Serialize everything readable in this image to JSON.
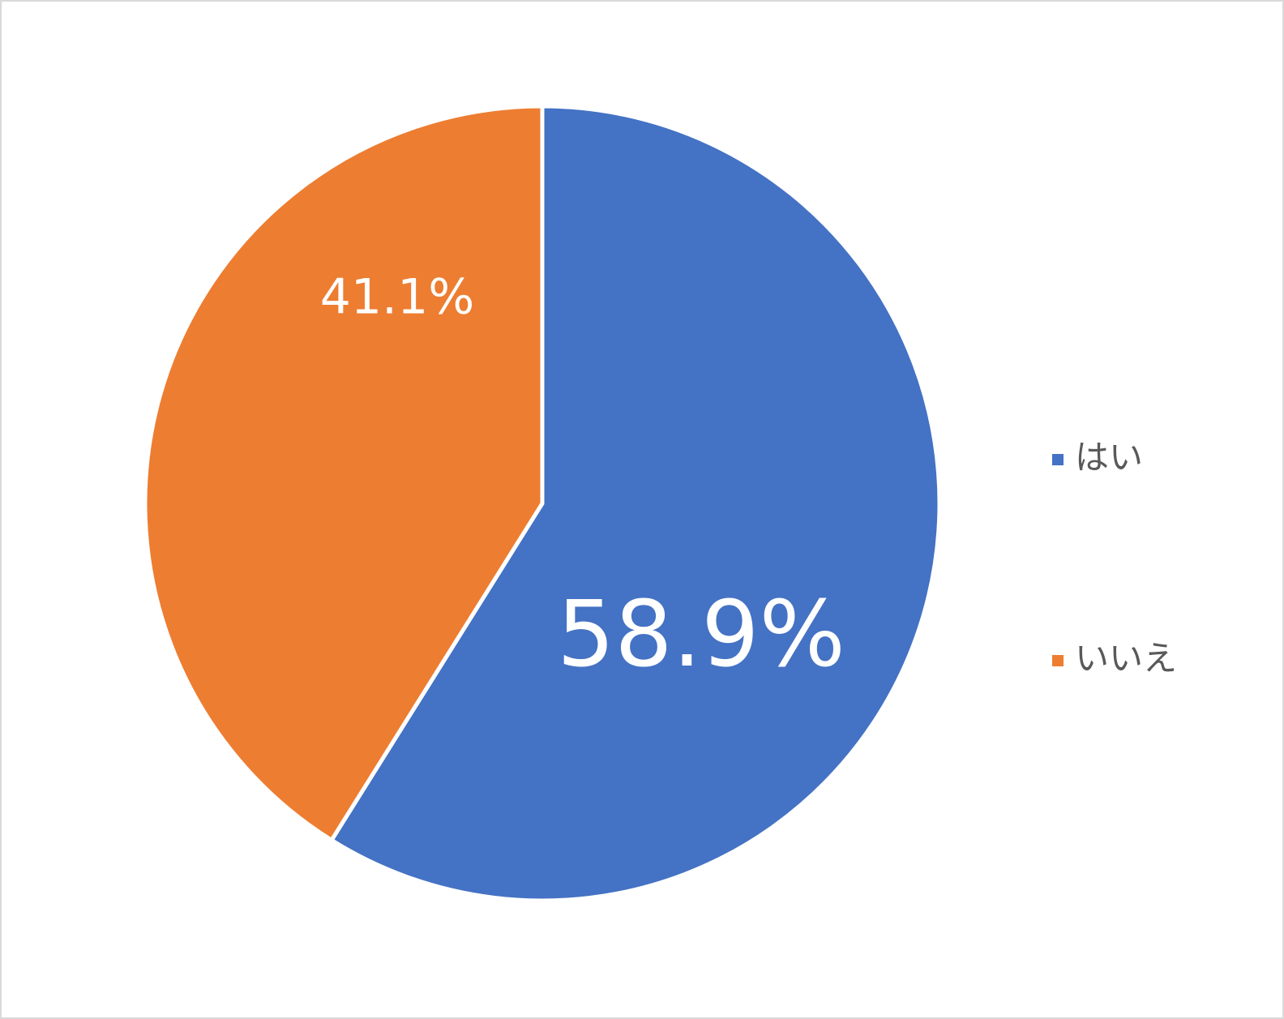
{
  "chart_data": {
    "type": "pie",
    "categories": [
      "はい",
      "いいえ"
    ],
    "values": [
      58.9,
      41.1
    ],
    "value_labels": [
      "58.9%",
      "41.1%"
    ],
    "colors": [
      "#4472c4",
      "#ed7d31"
    ],
    "legend": "right"
  }
}
